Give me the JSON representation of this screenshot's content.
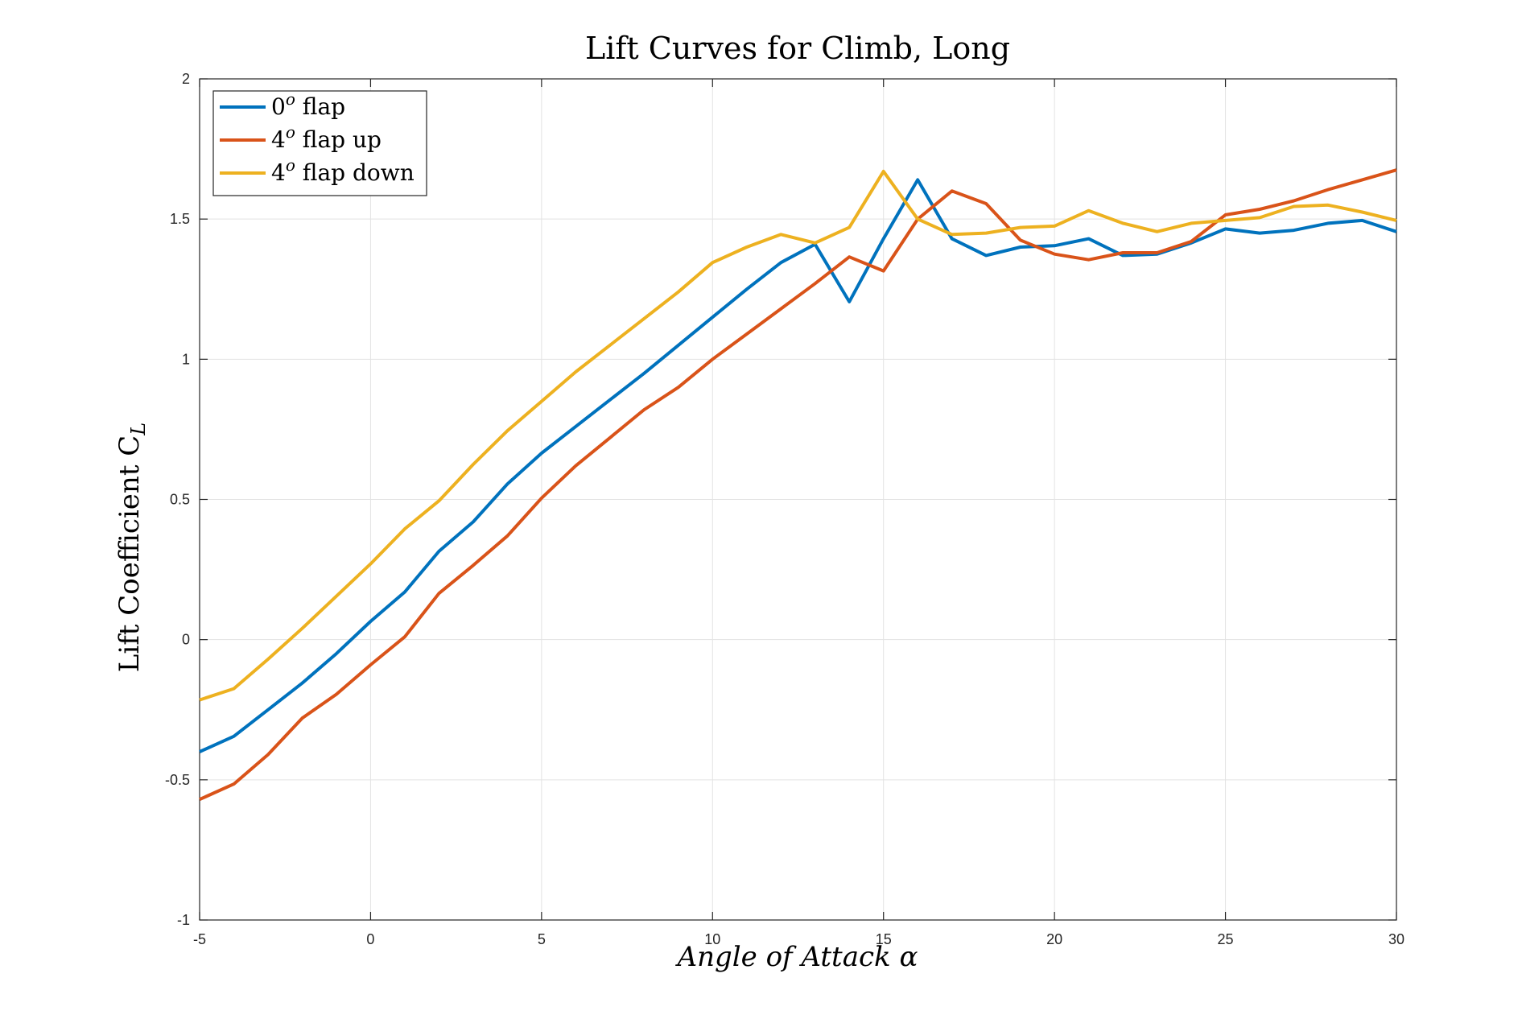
{
  "chart_data": {
    "type": "line",
    "title": "Lift Curves for Climb, Long",
    "xlabel": "Angle of Attack α",
    "ylabel": "Lift Coefficient C",
    "ylabel_subscript": "L",
    "xlim": [
      -5,
      30
    ],
    "ylim": [
      -1,
      2
    ],
    "xticks": [
      "-5",
      "0",
      "5",
      "10",
      "15",
      "20",
      "25",
      "30"
    ],
    "yticks": [
      "-1",
      "-0.5",
      "0",
      "0.5",
      "1",
      "1.5",
      "2"
    ],
    "grid": true,
    "legend_position": "top-left",
    "x": [
      -5,
      -4,
      -3,
      -2,
      -1,
      0,
      1,
      2,
      3,
      4,
      5,
      6,
      7,
      8,
      9,
      10,
      11,
      12,
      13,
      14,
      15,
      16,
      17,
      18,
      19,
      20,
      21,
      22,
      23,
      24,
      25,
      26,
      27,
      28,
      29,
      30
    ],
    "series": [
      {
        "name": "0",
        "name_sup": "o",
        "name_rest": " flap",
        "color": "#0072BD",
        "values": [
          -0.4,
          -0.345,
          -0.25,
          -0.155,
          -0.05,
          0.065,
          0.17,
          0.315,
          0.42,
          0.555,
          0.665,
          0.76,
          0.855,
          0.95,
          1.05,
          1.15,
          1.25,
          1.345,
          1.41,
          1.205,
          1.43,
          1.64,
          1.43,
          1.37,
          1.4,
          1.405,
          1.43,
          1.37,
          1.375,
          1.415,
          1.465,
          1.45,
          1.46,
          1.485,
          1.495,
          1.455
        ]
      },
      {
        "name": "4",
        "name_sup": "o",
        "name_rest": " flap up",
        "color": "#D95319",
        "values": [
          -0.57,
          -0.515,
          -0.41,
          -0.28,
          -0.195,
          -0.09,
          0.01,
          0.165,
          0.265,
          0.37,
          0.505,
          0.62,
          0.72,
          0.82,
          0.9,
          1.0,
          1.09,
          1.18,
          1.27,
          1.365,
          1.315,
          1.5,
          1.6,
          1.555,
          1.425,
          1.375,
          1.355,
          1.38,
          1.38,
          1.42,
          1.515,
          1.535,
          1.565,
          1.605,
          1.64,
          1.675
        ]
      },
      {
        "name": "4",
        "name_sup": "o",
        "name_rest": " flap down",
        "color": "#EDB120",
        "values": [
          -0.215,
          -0.175,
          -0.07,
          0.04,
          0.155,
          0.27,
          0.395,
          0.495,
          0.625,
          0.745,
          0.85,
          0.955,
          1.05,
          1.145,
          1.24,
          1.345,
          1.4,
          1.445,
          1.415,
          1.47,
          1.67,
          1.5,
          1.445,
          1.45,
          1.47,
          1.475,
          1.53,
          1.485,
          1.455,
          1.485,
          1.495,
          1.505,
          1.545,
          1.55,
          1.525,
          1.495
        ]
      }
    ]
  }
}
